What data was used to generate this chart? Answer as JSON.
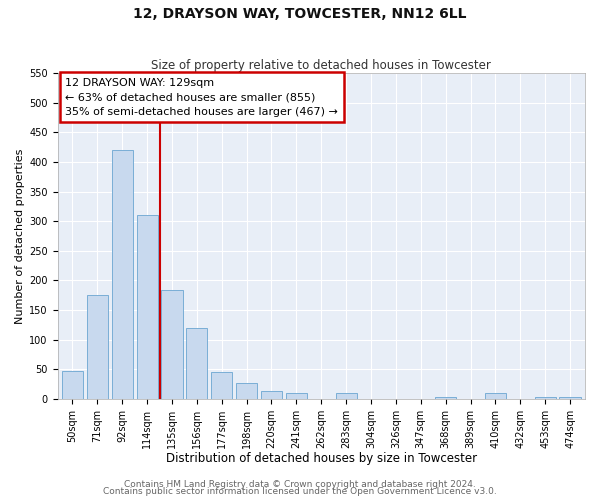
{
  "title": "12, DRAYSON WAY, TOWCESTER, NN12 6LL",
  "subtitle": "Size of property relative to detached houses in Towcester",
  "xlabel": "Distribution of detached houses by size in Towcester",
  "ylabel": "Number of detached properties",
  "bar_labels": [
    "50sqm",
    "71sqm",
    "92sqm",
    "114sqm",
    "135sqm",
    "156sqm",
    "177sqm",
    "198sqm",
    "220sqm",
    "241sqm",
    "262sqm",
    "283sqm",
    "304sqm",
    "326sqm",
    "347sqm",
    "368sqm",
    "389sqm",
    "410sqm",
    "432sqm",
    "453sqm",
    "474sqm"
  ],
  "bar_values": [
    47,
    175,
    420,
    310,
    184,
    120,
    46,
    27,
    13,
    10,
    0,
    10,
    0,
    0,
    0,
    3,
    0,
    10,
    0,
    3,
    3
  ],
  "bar_color": "#c8d9ee",
  "bar_edge_color": "#7aaed6",
  "ylim": [
    0,
    550
  ],
  "yticks": [
    0,
    50,
    100,
    150,
    200,
    250,
    300,
    350,
    400,
    450,
    500,
    550
  ],
  "vline_color": "#cc0000",
  "vline_pos": 3.5,
  "annotation_title": "12 DRAYSON WAY: 129sqm",
  "annotation_line1": "← 63% of detached houses are smaller (855)",
  "annotation_line2": "35% of semi-detached houses are larger (467) →",
  "annotation_box_edgecolor": "#cc0000",
  "footer_line1": "Contains HM Land Registry data © Crown copyright and database right 2024.",
  "footer_line2": "Contains public sector information licensed under the Open Government Licence v3.0.",
  "bg_color": "#ffffff",
  "plot_bg_color": "#e8eef7",
  "grid_color": "#ffffff",
  "title_fontsize": 10,
  "subtitle_fontsize": 8.5,
  "xlabel_fontsize": 8.5,
  "ylabel_fontsize": 8,
  "tick_fontsize": 7,
  "ann_fontsize": 8,
  "footer_fontsize": 6.5
}
